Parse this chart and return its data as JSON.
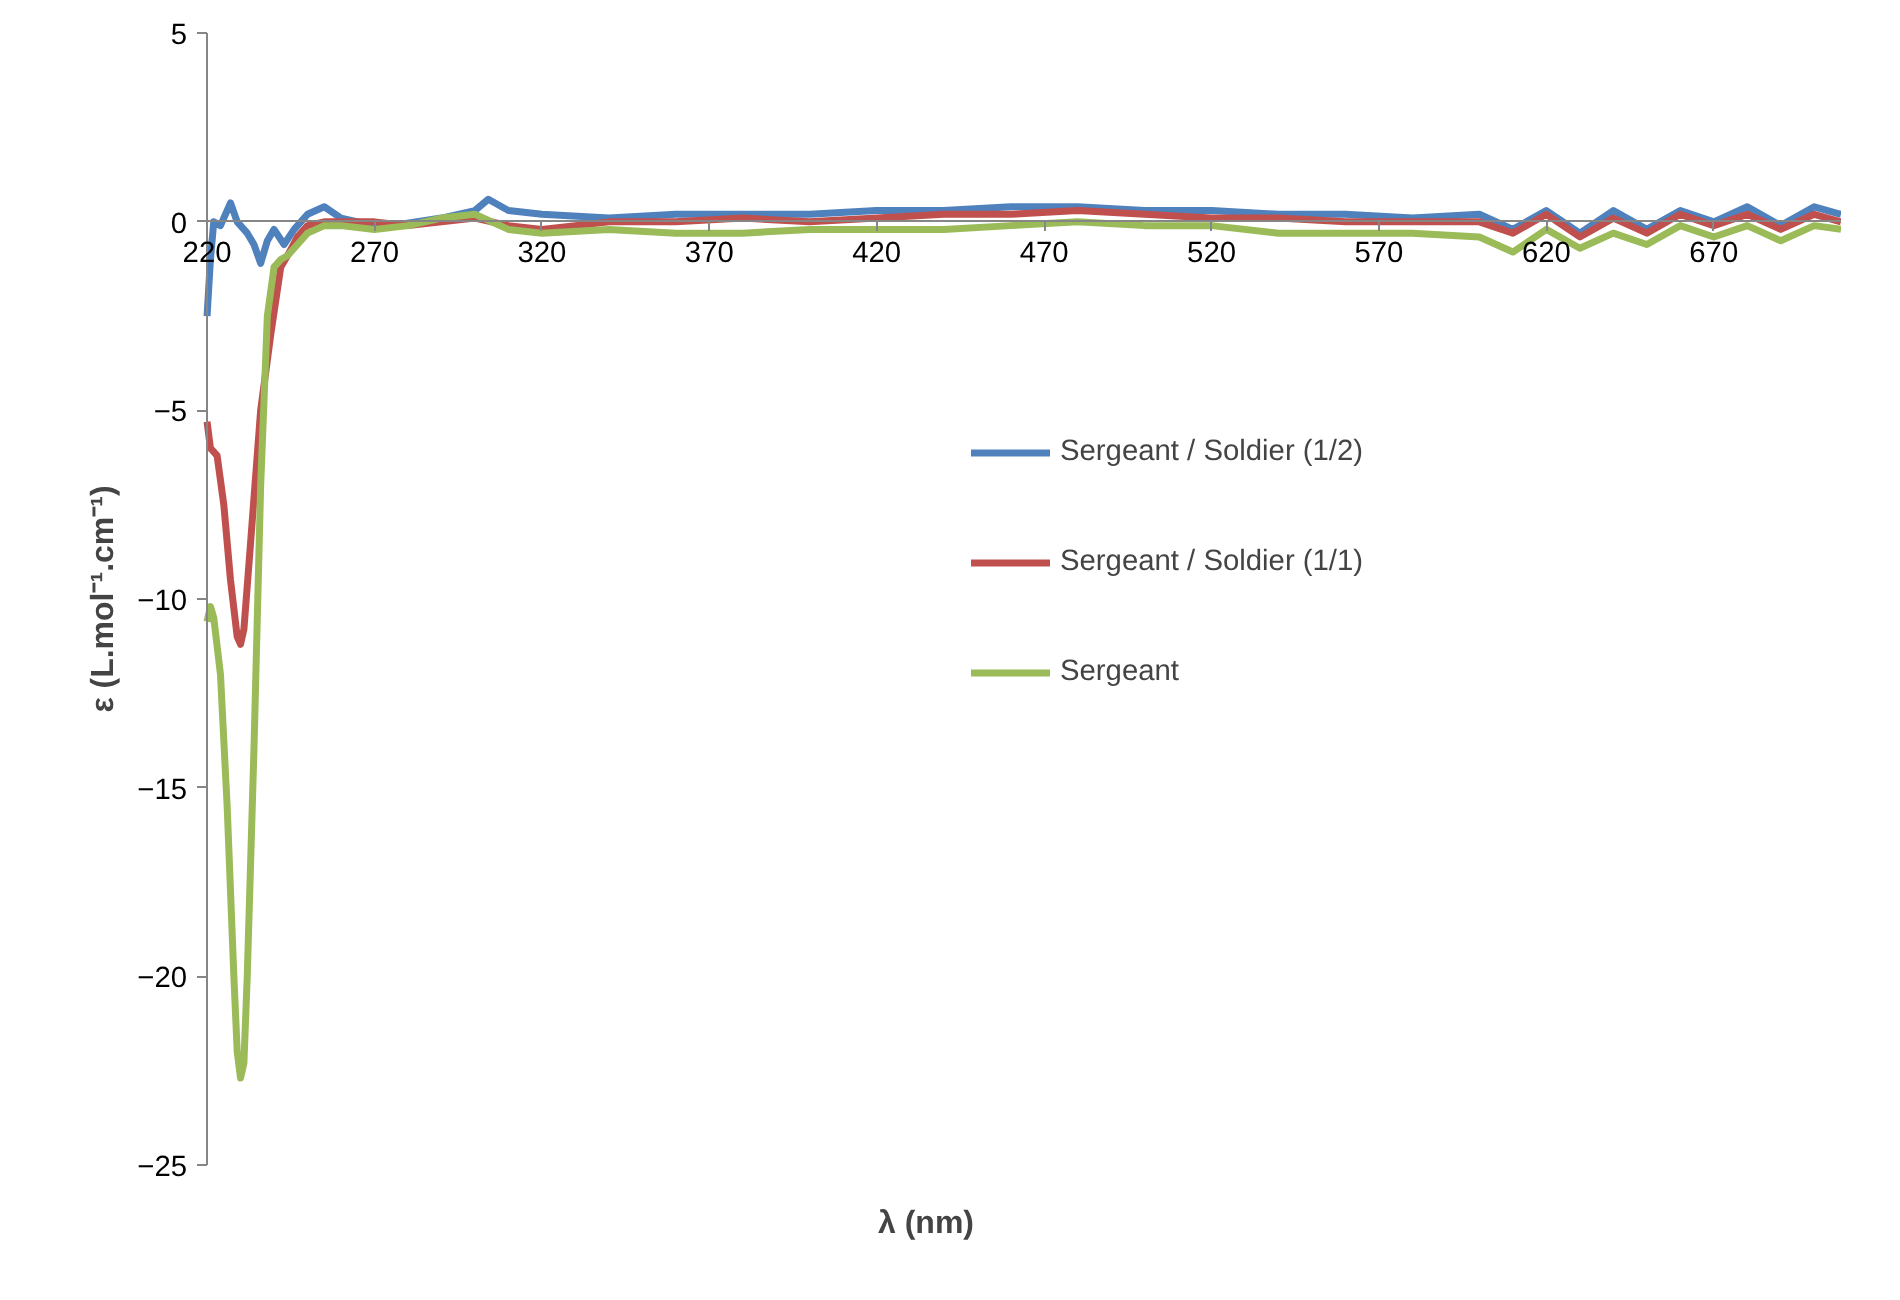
{
  "chart_data": {
    "type": "line",
    "xlabel": "λ (nm)",
    "ylabel": "ε (L.mol⁻¹.cm⁻¹)",
    "xlim": [
      220,
      708
    ],
    "ylim": [
      -25,
      5
    ],
    "xticks": [
      220,
      270,
      320,
      370,
      420,
      470,
      520,
      570,
      620,
      670
    ],
    "yticks": [
      -25,
      -20,
      -15,
      -10,
      -5,
      0,
      5
    ],
    "grid": false,
    "legend": "right",
    "marker": "none",
    "line_style": "solid",
    "series": [
      {
        "name": "Sergeant / Soldier (1/2)",
        "color": "#4f81bd",
        "x": [
          220,
          221,
          222,
          224,
          227,
          229,
          232,
          234,
          236,
          238,
          240,
          243,
          246,
          250,
          255,
          260,
          265,
          275,
          290,
          300,
          304,
          310,
          320,
          340,
          360,
          380,
          400,
          420,
          440,
          460,
          480,
          500,
          520,
          540,
          560,
          580,
          600,
          610,
          620,
          630,
          640,
          650,
          660,
          670,
          680,
          690,
          700,
          708
        ],
        "values": [
          -2.5,
          -1,
          0,
          -0.1,
          0.5,
          0,
          -0.3,
          -0.6,
          -1.1,
          -0.5,
          -0.2,
          -0.6,
          -0.2,
          0.2,
          0.4,
          0.1,
          0,
          -0.1,
          0.1,
          0.3,
          0.6,
          0.3,
          0.2,
          0.1,
          0.2,
          0.2,
          0.2,
          0.3,
          0.3,
          0.4,
          0.4,
          0.3,
          0.3,
          0.2,
          0.2,
          0.1,
          0.2,
          -0.2,
          0.3,
          -0.3,
          0.3,
          -0.2,
          0.3,
          0,
          0.4,
          -0.1,
          0.4,
          0.2
        ]
      },
      {
        "name": "Sergeant / Soldier (1/1)",
        "color": "#c0504d",
        "x": [
          220,
          221,
          223,
          225,
          227,
          229,
          230,
          231,
          233,
          236,
          239,
          242,
          244,
          247,
          250,
          255,
          260,
          270,
          280,
          290,
          300,
          310,
          320,
          340,
          360,
          380,
          400,
          420,
          440,
          460,
          480,
          500,
          520,
          540,
          560,
          580,
          600,
          610,
          620,
          630,
          640,
          650,
          660,
          670,
          680,
          690,
          700,
          708
        ],
        "values": [
          -5.3,
          -6,
          -6.2,
          -7.5,
          -9.5,
          -11,
          -11.2,
          -10.8,
          -8.5,
          -5,
          -3,
          -1.2,
          -0.9,
          -0.4,
          -0.1,
          0,
          0,
          0,
          -0.1,
          0,
          0.1,
          -0.1,
          -0.2,
          0,
          0,
          0.1,
          0,
          0.1,
          0.2,
          0.2,
          0.3,
          0.2,
          0.1,
          0.1,
          0,
          0,
          0,
          -0.3,
          0.2,
          -0.4,
          0.1,
          -0.3,
          0.2,
          -0.1,
          0.2,
          -0.2,
          0.2,
          0
        ]
      },
      {
        "name": "Sergeant",
        "color": "#9bbb59",
        "x": [
          220,
          221,
          222,
          224,
          226,
          228,
          229,
          230,
          231,
          232,
          234,
          236,
          238,
          240,
          242,
          244,
          247,
          250,
          255,
          260,
          270,
          280,
          290,
          300,
          310,
          320,
          340,
          360,
          380,
          400,
          420,
          440,
          460,
          480,
          500,
          520,
          540,
          560,
          580,
          600,
          610,
          620,
          630,
          640,
          650,
          660,
          670,
          680,
          690,
          700,
          708
        ],
        "values": [
          -10.6,
          -10.2,
          -10.5,
          -12,
          -15.5,
          -20,
          -22,
          -22.7,
          -22.3,
          -20,
          -14,
          -7,
          -2.5,
          -1.2,
          -1,
          -0.9,
          -0.6,
          -0.3,
          -0.1,
          -0.1,
          -0.2,
          -0.1,
          0.1,
          0.2,
          -0.2,
          -0.3,
          -0.2,
          -0.3,
          -0.3,
          -0.2,
          -0.2,
          -0.2,
          -0.1,
          0,
          -0.1,
          -0.1,
          -0.3,
          -0.3,
          -0.3,
          -0.4,
          -0.8,
          -0.2,
          -0.7,
          -0.3,
          -0.6,
          -0.1,
          -0.4,
          -0.1,
          -0.5,
          -0.1,
          -0.2
        ]
      }
    ]
  }
}
